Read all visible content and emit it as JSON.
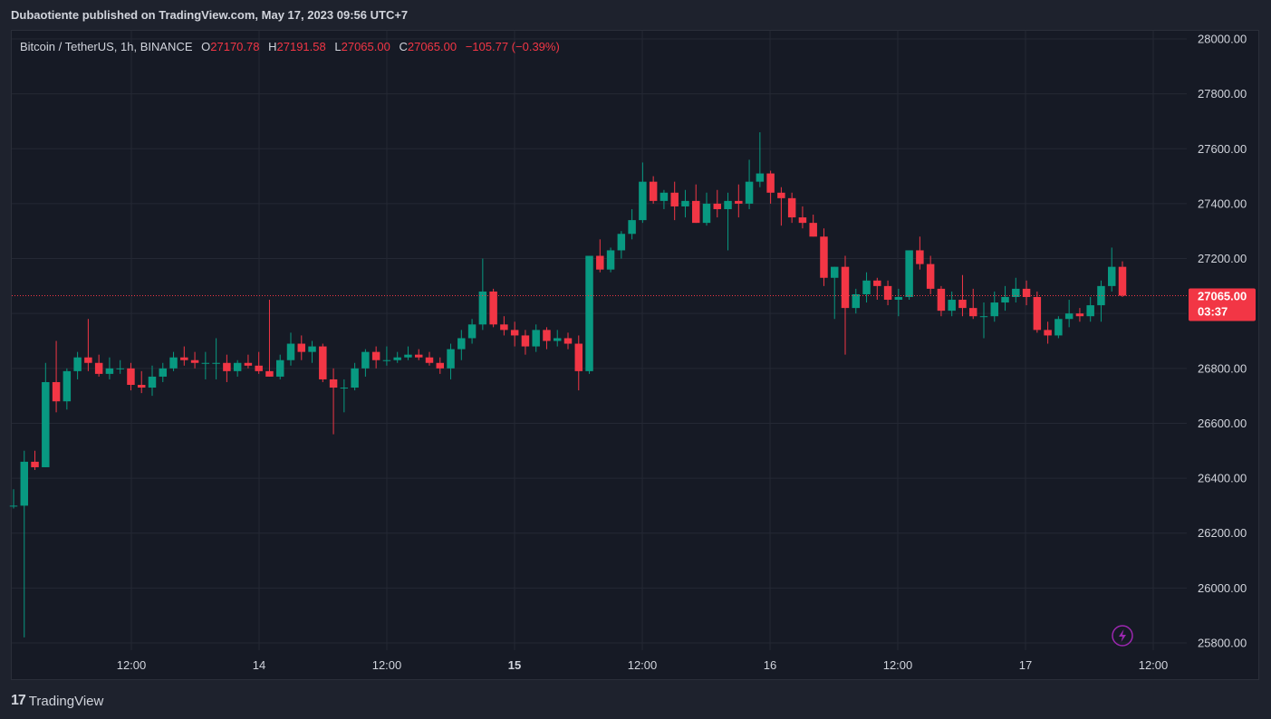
{
  "header": {
    "published": "Dubaotiente published on TradingView.com, May 17, 2023 09:56 UTC+7"
  },
  "legend": {
    "symbol": "Bitcoin / TetherUS, 1h, BINANCE",
    "o_label": "O",
    "o_value": "27170.78",
    "h_label": "H",
    "h_value": "27191.58",
    "l_label": "L",
    "l_value": "27065.00",
    "c_label": "C",
    "c_value": "27065.00",
    "change": "−105.77 (−0.39%)"
  },
  "footer": {
    "logo_text": "TradingView"
  },
  "colors": {
    "up": "#089981",
    "down": "#f23645",
    "grid": "#242834",
    "background": "#161a25",
    "text": "#d1d4dc",
    "price_tag": "#f23645"
  },
  "chart_data": {
    "type": "candlestick",
    "symbol": "Bitcoin / TetherUS",
    "interval": "1h",
    "exchange": "BINANCE",
    "ylim": [
      25750,
      28050
    ],
    "y_ticks": [
      "28000.00",
      "27800.00",
      "27600.00",
      "27400.00",
      "27200.00",
      "27000.00",
      "26800.00",
      "26600.00",
      "26400.00",
      "26200.00",
      "26000.00",
      "25800.00"
    ],
    "x_ticks": [
      {
        "label": "12:00",
        "bold": false
      },
      {
        "label": "14",
        "bold": false
      },
      {
        "label": "12:00",
        "bold": false
      },
      {
        "label": "15",
        "bold": true
      },
      {
        "label": "12:00",
        "bold": false
      },
      {
        "label": "16",
        "bold": false
      },
      {
        "label": "12:00",
        "bold": false
      },
      {
        "label": "17",
        "bold": false
      },
      {
        "label": "12:00",
        "bold": false
      }
    ],
    "last_price": "27065.00",
    "countdown": "03:37",
    "ohlc": [
      [
        26300,
        26360,
        26290,
        26300
      ],
      [
        26300,
        26500,
        25820,
        26460
      ],
      [
        26460,
        26500,
        26430,
        26440
      ],
      [
        26440,
        26820,
        26440,
        26750
      ],
      [
        26750,
        26900,
        26640,
        26680
      ],
      [
        26680,
        26800,
        26650,
        26790
      ],
      [
        26790,
        26860,
        26760,
        26840
      ],
      [
        26840,
        26980,
        26790,
        26820
      ],
      [
        26820,
        26850,
        26770,
        26780
      ],
      [
        26780,
        26840,
        26760,
        26800
      ],
      [
        26800,
        26830,
        26780,
        26800
      ],
      [
        26800,
        26820,
        26720,
        26740
      ],
      [
        26740,
        26790,
        26710,
        26730
      ],
      [
        26730,
        26810,
        26700,
        26770
      ],
      [
        26770,
        26820,
        26750,
        26800
      ],
      [
        26800,
        26860,
        26790,
        26840
      ],
      [
        26840,
        26880,
        26810,
        26830
      ],
      [
        26830,
        26860,
        26800,
        26820
      ],
      [
        26820,
        26860,
        26760,
        26820
      ],
      [
        26820,
        26910,
        26760,
        26820
      ],
      [
        26820,
        26850,
        26750,
        26790
      ],
      [
        26790,
        26830,
        26770,
        26820
      ],
      [
        26820,
        26850,
        26800,
        26810
      ],
      [
        26810,
        26860,
        26780,
        26790
      ],
      [
        26790,
        27050,
        26770,
        26770
      ],
      [
        26770,
        26850,
        26760,
        26830
      ],
      [
        26830,
        26930,
        26810,
        26890
      ],
      [
        26890,
        26920,
        26830,
        26860
      ],
      [
        26860,
        26900,
        26820,
        26880
      ],
      [
        26880,
        26890,
        26750,
        26760
      ],
      [
        26760,
        26800,
        26560,
        26730
      ],
      [
        26730,
        26760,
        26640,
        26730
      ],
      [
        26730,
        26820,
        26720,
        26800
      ],
      [
        26800,
        26870,
        26770,
        26860
      ],
      [
        26860,
        26880,
        26800,
        26830
      ],
      [
        26830,
        26880,
        26810,
        26830
      ],
      [
        26830,
        26860,
        26820,
        26840
      ],
      [
        26840,
        26880,
        26830,
        26850
      ],
      [
        26850,
        26870,
        26830,
        26840
      ],
      [
        26840,
        26860,
        26810,
        26820
      ],
      [
        26820,
        26840,
        26780,
        26800
      ],
      [
        26800,
        26890,
        26760,
        26870
      ],
      [
        26870,
        26940,
        26830,
        26910
      ],
      [
        26910,
        26980,
        26890,
        26960
      ],
      [
        26960,
        27200,
        26940,
        27080
      ],
      [
        27080,
        27090,
        26950,
        26960
      ],
      [
        26960,
        26990,
        26920,
        26940
      ],
      [
        26940,
        26970,
        26880,
        26920
      ],
      [
        26920,
        26940,
        26850,
        26880
      ],
      [
        26880,
        26960,
        26860,
        26940
      ],
      [
        26940,
        26950,
        26870,
        26900
      ],
      [
        26900,
        26940,
        26880,
        26910
      ],
      [
        26910,
        26930,
        26870,
        26890
      ],
      [
        26890,
        26920,
        26720,
        26790
      ],
      [
        26790,
        27210,
        26780,
        27210
      ],
      [
        27210,
        27270,
        27150,
        27160
      ],
      [
        27160,
        27240,
        27150,
        27230
      ],
      [
        27230,
        27300,
        27200,
        27290
      ],
      [
        27290,
        27380,
        27270,
        27340
      ],
      [
        27340,
        27550,
        27330,
        27480
      ],
      [
        27480,
        27500,
        27400,
        27410
      ],
      [
        27410,
        27450,
        27380,
        27440
      ],
      [
        27440,
        27480,
        27340,
        27390
      ],
      [
        27390,
        27450,
        27350,
        27410
      ],
      [
        27410,
        27470,
        27330,
        27330
      ],
      [
        27330,
        27440,
        27320,
        27400
      ],
      [
        27400,
        27450,
        27350,
        27380
      ],
      [
        27380,
        27440,
        27230,
        27410
      ],
      [
        27410,
        27470,
        27350,
        27400
      ],
      [
        27400,
        27560,
        27380,
        27480
      ],
      [
        27480,
        27660,
        27460,
        27510
      ],
      [
        27510,
        27520,
        27400,
        27440
      ],
      [
        27440,
        27460,
        27320,
        27420
      ],
      [
        27420,
        27440,
        27330,
        27350
      ],
      [
        27350,
        27390,
        27310,
        27330
      ],
      [
        27330,
        27360,
        27280,
        27280
      ],
      [
        27280,
        27310,
        27100,
        27130
      ],
      [
        27130,
        27170,
        26980,
        27170
      ],
      [
        27170,
        27210,
        26850,
        27020
      ],
      [
        27020,
        27090,
        27000,
        27070
      ],
      [
        27070,
        27150,
        27040,
        27120
      ],
      [
        27120,
        27130,
        27050,
        27100
      ],
      [
        27100,
        27120,
        27030,
        27050
      ],
      [
        27050,
        27090,
        26990,
        27060
      ],
      [
        27060,
        27230,
        27050,
        27230
      ],
      [
        27230,
        27280,
        27160,
        27180
      ],
      [
        27180,
        27210,
        27070,
        27090
      ],
      [
        27090,
        27100,
        26990,
        27010
      ],
      [
        27010,
        27080,
        26990,
        27050
      ],
      [
        27050,
        27140,
        26990,
        27020
      ],
      [
        27020,
        27090,
        26980,
        26990
      ],
      [
        26990,
        27040,
        26910,
        26990
      ],
      [
        26990,
        27080,
        26970,
        27040
      ],
      [
        27040,
        27100,
        27010,
        27060
      ],
      [
        27060,
        27130,
        27040,
        27090
      ],
      [
        27090,
        27120,
        27030,
        27060
      ],
      [
        27060,
        27080,
        26930,
        26940
      ],
      [
        26940,
        26970,
        26890,
        26920
      ],
      [
        26920,
        26990,
        26910,
        26980
      ],
      [
        26980,
        27050,
        26950,
        27000
      ],
      [
        27000,
        27020,
        26970,
        26990
      ],
      [
        26990,
        27060,
        26970,
        27030
      ],
      [
        27030,
        27120,
        26970,
        27100
      ],
      [
        27100,
        27240,
        27080,
        27170
      ],
      [
        27170,
        27190,
        27060,
        27065
      ]
    ]
  }
}
